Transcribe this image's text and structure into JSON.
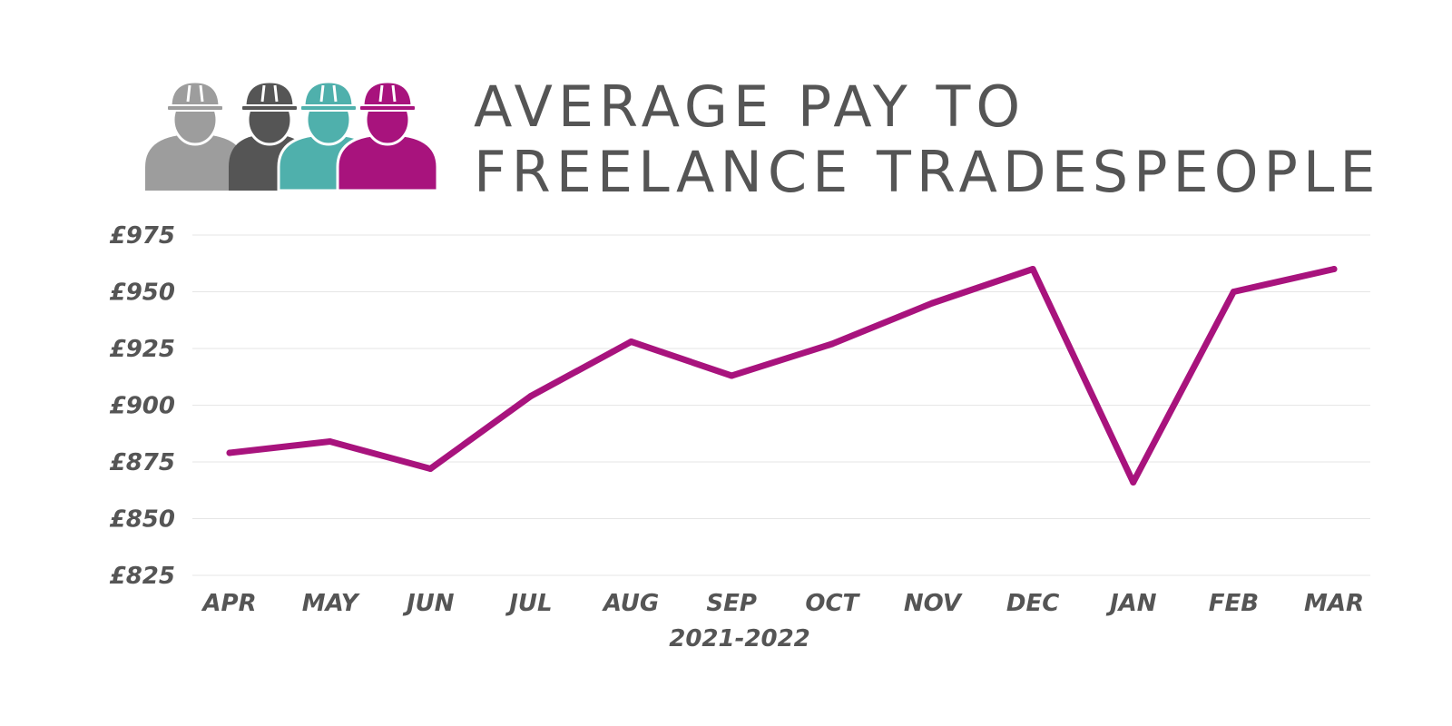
{
  "header": {
    "title_line1": "AVERAGE PAY TO",
    "title_line2": "FREELANCE TRADESPEOPLE"
  },
  "icons": [
    "worker-icon",
    "worker-icon",
    "worker-icon",
    "worker-icon"
  ],
  "colors": {
    "series": "#A8137D",
    "text": "#555555",
    "grid": "#e6e6e6",
    "worker_grey_light": "#9d9d9d",
    "worker_grey_dark": "#555555",
    "worker_teal": "#4fb0ac",
    "worker_magenta": "#A8137D"
  },
  "chart_data": {
    "type": "line",
    "title": "AVERAGE PAY TO FREELANCE TRADESPEOPLE",
    "xlabel": "2021-2022",
    "ylabel": "",
    "categories": [
      "APR",
      "MAY",
      "JUN",
      "JUL",
      "AUG",
      "SEP",
      "OCT",
      "NOV",
      "DEC",
      "JAN",
      "FEB",
      "MAR"
    ],
    "series": [
      {
        "values": [
          879,
          884,
          872,
          904,
          928,
          913,
          927,
          945,
          960,
          866,
          950,
          960
        ]
      }
    ],
    "ylim": [
      825,
      975
    ],
    "yticks": [
      975,
      950,
      925,
      900,
      875,
      850,
      825
    ],
    "ytick_labels": [
      "£975",
      "£950",
      "£925",
      "£900",
      "£875",
      "£850",
      "£825"
    ],
    "grid": true,
    "legend": "none"
  }
}
